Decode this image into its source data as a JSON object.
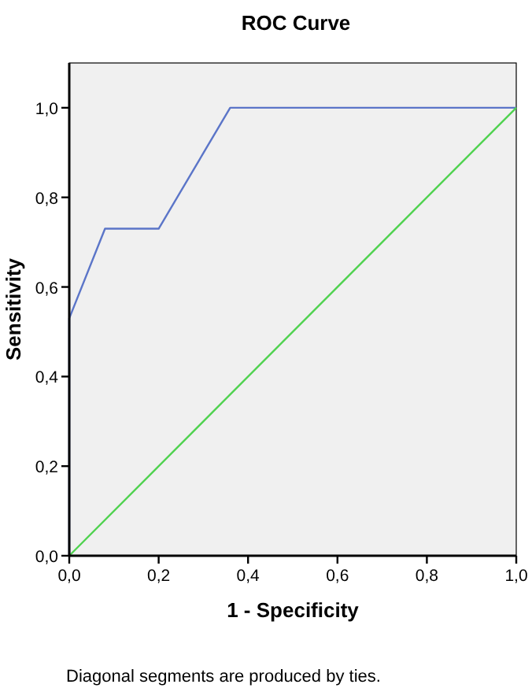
{
  "chart_data": {
    "type": "line",
    "title": "ROC Curve",
    "xlabel": "1 - Specificity",
    "ylabel": "Sensitivity",
    "xlim": [
      0,
      1
    ],
    "ylim": [
      0,
      1.1
    ],
    "xticks": [
      {
        "value": 0,
        "label": "0,0"
      },
      {
        "value": 0.2,
        "label": "0,2"
      },
      {
        "value": 0.4,
        "label": "0,4"
      },
      {
        "value": 0.6,
        "label": "0,6"
      },
      {
        "value": 0.8,
        "label": "0,8"
      },
      {
        "value": 1,
        "label": "1,0"
      }
    ],
    "yticks": [
      {
        "value": 0,
        "label": "0,0"
      },
      {
        "value": 0.2,
        "label": "0,2"
      },
      {
        "value": 0.4,
        "label": "0,4"
      },
      {
        "value": 0.6,
        "label": "0,6"
      },
      {
        "value": 0.8,
        "label": "0,8"
      },
      {
        "value": 1,
        "label": "1,0"
      }
    ],
    "series": [
      {
        "color": "#5b75c8",
        "x": [
          0,
          0,
          0.08,
          0.2,
          0.36,
          1
        ],
        "values": [
          0,
          0.53,
          0.73,
          0.73,
          1,
          1
        ]
      },
      {
        "color": "#4fd24f",
        "x": [
          0,
          1
        ],
        "values": [
          0,
          1
        ]
      }
    ],
    "grid": false,
    "annotations": [
      "Diagonal segments are produced by ties."
    ]
  }
}
